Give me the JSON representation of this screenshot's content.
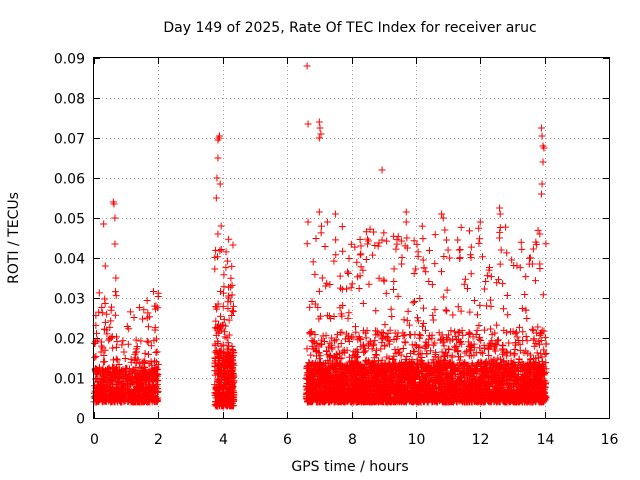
{
  "chart_data": {
    "type": "scatter",
    "title": "Day 149 of 2025, Rate Of TEC Index for receiver aruc",
    "xlabel": "GPS time / hours",
    "ylabel": "ROTI / TECUs",
    "xlim": [
      0,
      16
    ],
    "ylim": [
      0,
      0.09
    ],
    "xticks": [
      0,
      2,
      4,
      6,
      8,
      10,
      12,
      14,
      16
    ],
    "xtick_labels": [
      "0",
      "2",
      "4",
      "6",
      "8",
      "10",
      "12",
      "14",
      "16"
    ],
    "yticks": [
      0,
      0.01,
      0.02,
      0.03,
      0.04,
      0.05,
      0.06,
      0.07,
      0.08,
      0.09
    ],
    "ytick_labels": [
      "0",
      "0.01",
      "0.02",
      "0.03",
      "0.04",
      "0.05",
      "0.06",
      "0.07",
      "0.08",
      "0.09"
    ],
    "grid": true,
    "marker": "plus",
    "color": "#ff0000",
    "series": [
      {
        "name": "ROTI",
        "points": [
          [
            0.3,
            0.0485
          ],
          [
            0.35,
            0.038
          ],
          [
            0.6,
            0.054
          ],
          [
            0.62,
            0.0535
          ],
          [
            0.65,
            0.05
          ],
          [
            0.65,
            0.0435
          ],
          [
            0.68,
            0.035
          ],
          [
            3.8,
            0.055
          ],
          [
            3.82,
            0.06
          ],
          [
            3.85,
            0.0695
          ],
          [
            3.85,
            0.065
          ],
          [
            3.88,
            0.07
          ],
          [
            3.9,
            0.0705
          ],
          [
            3.92,
            0.0585
          ],
          [
            3.95,
            0.048
          ],
          [
            3.85,
            0.046
          ],
          [
            6.62,
            0.088
          ],
          [
            6.65,
            0.0735
          ],
          [
            6.65,
            0.049
          ],
          [
            7.0,
            0.074
          ],
          [
            7.02,
            0.0725
          ],
          [
            7.05,
            0.071
          ],
          [
            7.0,
            0.07
          ],
          [
            7.0,
            0.0515
          ],
          [
            7.25,
            0.049
          ],
          [
            7.5,
            0.051
          ],
          [
            8.95,
            0.062
          ],
          [
            8.95,
            0.0445
          ],
          [
            8.5,
            0.0435
          ],
          [
            9.7,
            0.0515
          ],
          [
            9.7,
            0.049
          ],
          [
            9.72,
            0.045
          ],
          [
            10.8,
            0.051
          ],
          [
            10.85,
            0.05
          ],
          [
            10.9,
            0.047
          ],
          [
            10.95,
            0.0445
          ],
          [
            11.0,
            0.042
          ],
          [
            11.05,
            0.04
          ],
          [
            11.3,
            0.0445
          ],
          [
            11.35,
            0.042
          ],
          [
            12.0,
            0.049
          ],
          [
            12.6,
            0.0525
          ],
          [
            12.62,
            0.051
          ],
          [
            12.6,
            0.045
          ],
          [
            12.65,
            0.042
          ],
          [
            13.9,
            0.0725
          ],
          [
            13.92,
            0.0705
          ],
          [
            13.95,
            0.068
          ],
          [
            13.98,
            0.0675
          ],
          [
            13.95,
            0.064
          ],
          [
            13.92,
            0.0585
          ],
          [
            13.9,
            0.056
          ],
          [
            13.85,
            0.046
          ],
          [
            13.85,
            0.0385
          ]
        ],
        "clusters": [
          {
            "x_range": [
              0.0,
              2.0
            ],
            "typical": [
              0.004,
              0.02
            ],
            "peak": 0.032,
            "count": 800
          },
          {
            "x_range": [
              3.75,
              4.35
            ],
            "typical": [
              0.003,
              0.028
            ],
            "peak": 0.045,
            "count": 450
          },
          {
            "x_range": [
              6.6,
              14.05
            ],
            "typical": [
              0.004,
              0.022
            ],
            "peak": 0.048,
            "count": 4200
          }
        ]
      }
    ]
  }
}
